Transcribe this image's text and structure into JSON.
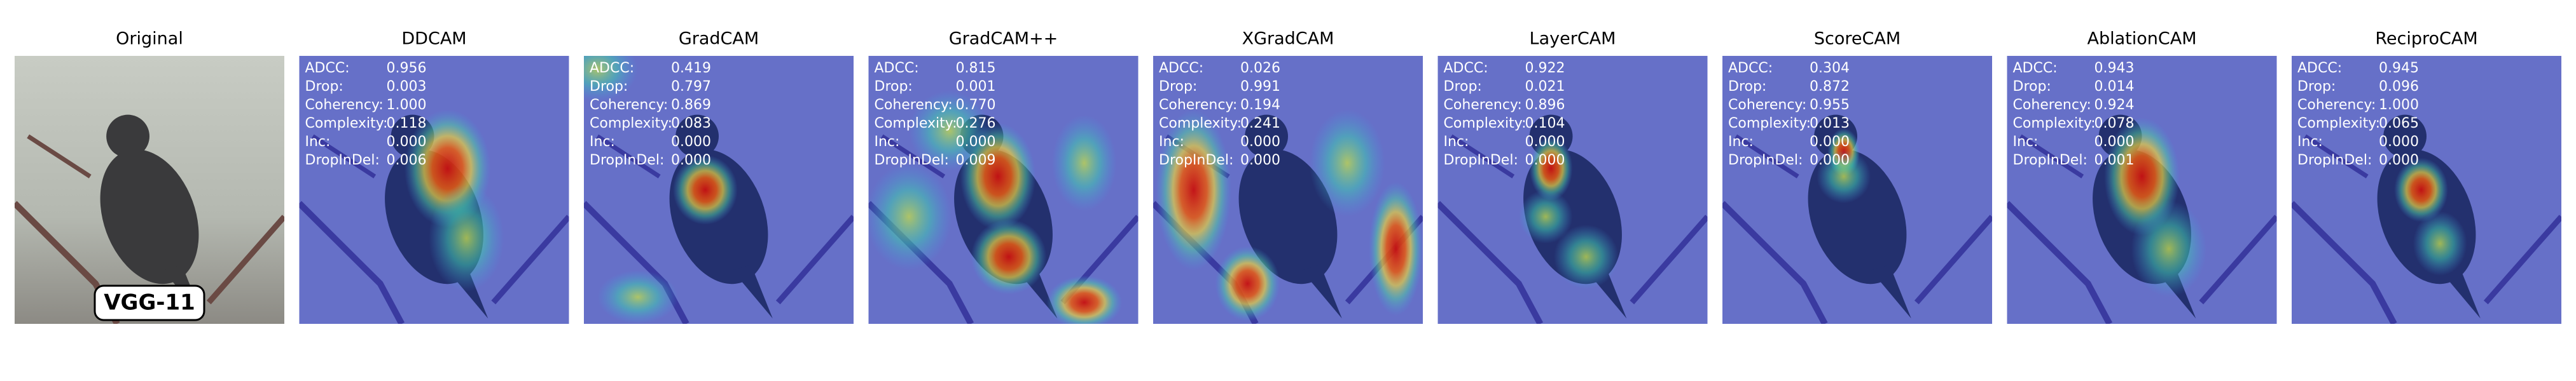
{
  "badge": "VGG-11",
  "metric_labels": [
    "ADCC:",
    "Drop:",
    "Coherency:",
    "Complexity:",
    "Inc:",
    "DropInDel:"
  ],
  "panels": [
    {
      "title": "Original"
    },
    {
      "title": "DDCAM",
      "values": [
        "0.956",
        "0.003",
        "1.000",
        "0.118",
        "0.000",
        "0.006"
      ]
    },
    {
      "title": "GradCAM",
      "values": [
        "0.419",
        "0.797",
        "0.869",
        "0.083",
        "0.000",
        "0.000"
      ]
    },
    {
      "title": "GradCAM++",
      "values": [
        "0.815",
        "0.001",
        "0.770",
        "0.276",
        "0.000",
        "0.009"
      ]
    },
    {
      "title": "XGradCAM",
      "values": [
        "0.026",
        "0.991",
        "0.194",
        "0.241",
        "0.000",
        "0.000"
      ]
    },
    {
      "title": "LayerCAM",
      "values": [
        "0.922",
        "0.021",
        "0.896",
        "0.104",
        "0.000",
        "0.000"
      ]
    },
    {
      "title": "ScoreCAM",
      "values": [
        "0.304",
        "0.872",
        "0.955",
        "0.013",
        "0.000",
        "0.000"
      ]
    },
    {
      "title": "AblationCAM",
      "values": [
        "0.943",
        "0.014",
        "0.924",
        "0.078",
        "0.000",
        "0.001"
      ]
    },
    {
      "title": "ReciproCAM",
      "values": [
        "0.945",
        "0.096",
        "1.000",
        "0.065",
        "0.000",
        "0.000"
      ]
    }
  ]
}
